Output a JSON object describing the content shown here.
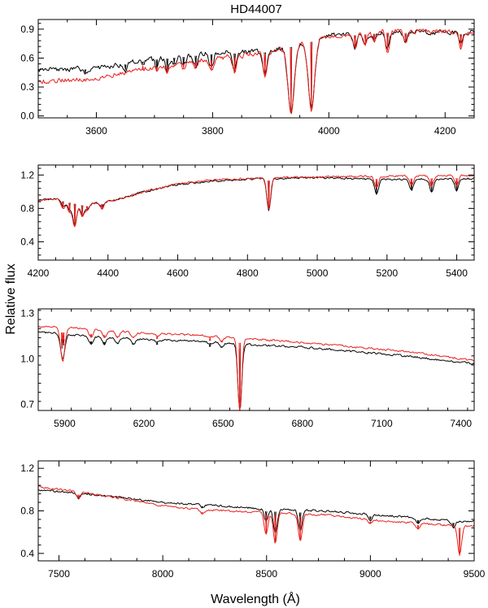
{
  "figure": {
    "title": "HD44007",
    "xlabel": "Wavelength (Å)",
    "ylabel": "Relative flux"
  },
  "colors": {
    "observed": "#000000",
    "model": "#e8201c",
    "axes": "#000000"
  },
  "chart_data": [
    {
      "type": "line",
      "xlim": [
        3500,
        4250
      ],
      "ylim": [
        -0.02,
        1.0
      ],
      "xticks": [
        3600,
        3800,
        4000,
        4200
      ],
      "yticks": [
        0.0,
        0.3,
        0.6,
        0.9
      ],
      "ytick_labels": [
        "0.0",
        "0.3",
        "0.6",
        "0.9"
      ],
      "series": [
        {
          "name": "observed",
          "color": "#000000",
          "baseline": [
            [
              3500,
              0.48
            ],
            [
              3600,
              0.5
            ],
            [
              3700,
              0.6
            ],
            [
              3800,
              0.66
            ],
            [
              3900,
              0.68
            ],
            [
              4000,
              0.84
            ],
            [
              4100,
              0.88
            ],
            [
              4250,
              0.87
            ]
          ],
          "lines": [
            [
              3935,
              0.05
            ],
            [
              3970,
              0.08
            ],
            [
              3890,
              0.42
            ],
            [
              3838,
              0.48
            ],
            [
              3798,
              0.5
            ],
            [
              3771,
              0.52
            ],
            [
              3750,
              0.52
            ],
            [
              3734,
              0.55
            ],
            [
              3722,
              0.48
            ],
            [
              3704,
              0.5
            ],
            [
              3680,
              0.55
            ],
            [
              3650,
              0.48
            ],
            [
              4101,
              0.7
            ],
            [
              4045,
              0.72
            ],
            [
              4063,
              0.75
            ],
            [
              4132,
              0.78
            ],
            [
              4078,
              0.8
            ],
            [
              4227,
              0.74
            ],
            [
              3581,
              0.45
            ]
          ]
        },
        {
          "name": "model",
          "color": "#e8201c",
          "baseline": [
            [
              3500,
              0.36
            ],
            [
              3600,
              0.4
            ],
            [
              3700,
              0.52
            ],
            [
              3800,
              0.6
            ],
            [
              3900,
              0.67
            ],
            [
              4000,
              0.84
            ],
            [
              4100,
              0.89
            ],
            [
              4250,
              0.87
            ]
          ],
          "lines": [
            [
              3935,
              0.05
            ],
            [
              3970,
              0.08
            ],
            [
              3890,
              0.4
            ],
            [
              3838,
              0.46
            ],
            [
              3798,
              0.47
            ],
            [
              3771,
              0.5
            ],
            [
              3750,
              0.5
            ],
            [
              3734,
              0.52
            ],
            [
              3722,
              0.45
            ],
            [
              3704,
              0.47
            ],
            [
              3680,
              0.52
            ],
            [
              3650,
              0.45
            ],
            [
              4101,
              0.68
            ],
            [
              4045,
              0.7
            ],
            [
              4063,
              0.73
            ],
            [
              4132,
              0.76
            ],
            [
              4078,
              0.78
            ],
            [
              4227,
              0.72
            ],
            [
              3581,
              0.38
            ]
          ]
        }
      ]
    },
    {
      "type": "line",
      "xlim": [
        4200,
        5450
      ],
      "ylim": [
        0.18,
        1.32
      ],
      "xticks": [
        4200,
        4400,
        4600,
        4800,
        5000,
        5200,
        5400
      ],
      "yticks": [
        0.4,
        0.8,
        1.2
      ],
      "ytick_labels": [
        "0.4",
        "0.8",
        "1.2"
      ],
      "series": [
        {
          "name": "observed",
          "color": "#000000",
          "baseline": [
            [
              4200,
              0.9
            ],
            [
              4260,
              0.92
            ],
            [
              4340,
              0.85
            ],
            [
              4420,
              0.9
            ],
            [
              4500,
              1.0
            ],
            [
              4600,
              1.09
            ],
            [
              4700,
              1.13
            ],
            [
              4850,
              1.16
            ],
            [
              5000,
              1.17
            ],
            [
              5200,
              1.15
            ],
            [
              5450,
              1.16
            ]
          ],
          "lines": [
            [
              4861,
              0.78
            ],
            [
              4305,
              0.6
            ],
            [
              4326,
              0.72
            ],
            [
              4340,
              0.8
            ],
            [
              4383,
              0.82
            ],
            [
              4271,
              0.82
            ],
            [
              4290,
              0.78
            ],
            [
              5170,
              0.98
            ],
            [
              5270,
              1.02
            ],
            [
              5328,
              1.0
            ],
            [
              5400,
              1.02
            ]
          ]
        },
        {
          "name": "model",
          "color": "#e8201c",
          "baseline": [
            [
              4200,
              0.9
            ],
            [
              4260,
              0.92
            ],
            [
              4340,
              0.85
            ],
            [
              4420,
              0.9
            ],
            [
              4500,
              1.0
            ],
            [
              4600,
              1.1
            ],
            [
              4700,
              1.14
            ],
            [
              4850,
              1.17
            ],
            [
              5000,
              1.18
            ],
            [
              5200,
              1.19
            ],
            [
              5450,
              1.2
            ]
          ],
          "lines": [
            [
              4861,
              0.8
            ],
            [
              4305,
              0.58
            ],
            [
              4326,
              0.7
            ],
            [
              4340,
              0.78
            ],
            [
              4383,
              0.8
            ],
            [
              4271,
              0.8
            ],
            [
              4290,
              0.76
            ],
            [
              5170,
              1.05
            ],
            [
              5270,
              1.08
            ],
            [
              5328,
              1.07
            ],
            [
              5400,
              1.09
            ]
          ]
        }
      ]
    },
    {
      "type": "line",
      "xlim": [
        5800,
        7450
      ],
      "ylim": [
        0.66,
        1.33
      ],
      "xticks": [
        5900,
        6200,
        6500,
        6800,
        7100,
        7400
      ],
      "yticks": [
        0.7,
        1.0,
        1.3
      ],
      "ytick_labels": [
        "0.7",
        "1.0",
        "1.3"
      ],
      "series": [
        {
          "name": "observed",
          "color": "#000000",
          "baseline": [
            [
              5800,
              1.18
            ],
            [
              6000,
              1.15
            ],
            [
              6200,
              1.13
            ],
            [
              6400,
              1.12
            ],
            [
              6563,
              1.1
            ],
            [
              6800,
              1.08
            ],
            [
              7000,
              1.05
            ],
            [
              7200,
              1.02
            ],
            [
              7450,
              0.97
            ]
          ],
          "lines": [
            [
              6563,
              0.66
            ],
            [
              5890,
              1.07
            ],
            [
              5896,
              1.09
            ],
            [
              6000,
              1.1
            ],
            [
              6050,
              1.1
            ],
            [
              6100,
              1.1
            ],
            [
              6160,
              1.1
            ],
            [
              6250,
              1.11
            ],
            [
              6495,
              1.08
            ],
            [
              6450,
              1.1
            ]
          ]
        },
        {
          "name": "model",
          "color": "#e8201c",
          "baseline": [
            [
              5800,
              1.22
            ],
            [
              6000,
              1.2
            ],
            [
              6200,
              1.17
            ],
            [
              6400,
              1.16
            ],
            [
              6563,
              1.14
            ],
            [
              6800,
              1.11
            ],
            [
              7000,
              1.08
            ],
            [
              7200,
              1.05
            ],
            [
              7450,
              0.99
            ]
          ],
          "lines": [
            [
              6563,
              0.66
            ],
            [
              5890,
              1.08
            ],
            [
              5896,
              1.1
            ],
            [
              6000,
              1.14
            ],
            [
              6050,
              1.14
            ],
            [
              6100,
              1.14
            ],
            [
              6160,
              1.14
            ],
            [
              6250,
              1.15
            ],
            [
              6495,
              1.12
            ],
            [
              6450,
              1.14
            ]
          ]
        }
      ]
    },
    {
      "type": "line",
      "xlim": [
        7400,
        9500
      ],
      "ylim": [
        0.33,
        1.27
      ],
      "xticks": [
        7500,
        8000,
        8500,
        9000,
        9500
      ],
      "yticks": [
        0.4,
        0.8,
        1.2
      ],
      "ytick_labels": [
        "0.4",
        "0.8",
        "1.2"
      ],
      "series": [
        {
          "name": "observed",
          "color": "#000000",
          "baseline": [
            [
              7400,
              1.0
            ],
            [
              7600,
              0.97
            ],
            [
              7800,
              0.93
            ],
            [
              8000,
              0.88
            ],
            [
              8200,
              0.86
            ],
            [
              8500,
              0.82
            ],
            [
              8800,
              0.8
            ],
            [
              9000,
              0.77
            ],
            [
              9200,
              0.74
            ],
            [
              9450,
              0.7
            ]
          ],
          "lines": [
            [
              8498,
              0.7
            ],
            [
              8542,
              0.6
            ],
            [
              8662,
              0.62
            ],
            [
              7594,
              0.92
            ],
            [
              8190,
              0.84
            ],
            [
              9000,
              0.72
            ],
            [
              9230,
              0.68
            ],
            [
              9400,
              0.65
            ]
          ]
        },
        {
          "name": "model",
          "color": "#e8201c",
          "baseline": [
            [
              7400,
              1.03
            ],
            [
              7600,
              0.98
            ],
            [
              7800,
              0.92
            ],
            [
              8000,
              0.85
            ],
            [
              8200,
              0.81
            ],
            [
              8500,
              0.79
            ],
            [
              8800,
              0.76
            ],
            [
              9000,
              0.72
            ],
            [
              9200,
              0.69
            ],
            [
              9420,
              0.66
            ]
          ],
          "lines": [
            [
              8498,
              0.58
            ],
            [
              8542,
              0.5
            ],
            [
              8662,
              0.52
            ],
            [
              7594,
              0.92
            ],
            [
              8190,
              0.78
            ],
            [
              9000,
              0.68
            ],
            [
              9230,
              0.63
            ],
            [
              9430,
              0.38
            ]
          ]
        }
      ]
    }
  ]
}
